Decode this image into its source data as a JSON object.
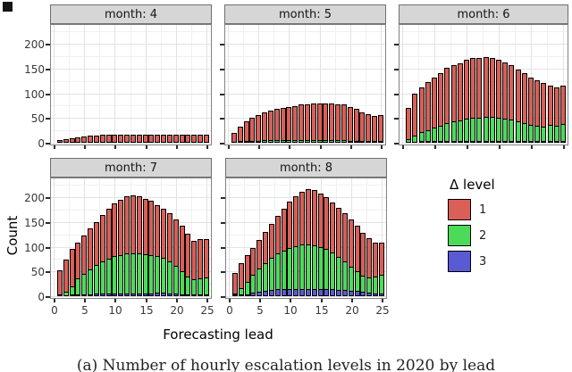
{
  "figure": {
    "y_axis_title": "Count",
    "x_axis_title": "Forecasting lead",
    "caption": "(a) Number of hourly escalation levels in 2020 by lead",
    "y_tick_labels": [
      "0",
      "50",
      "100",
      "150",
      "200"
    ],
    "x_tick_labels": [
      "0",
      "5",
      "10",
      "15",
      "20",
      "25"
    ]
  },
  "legend": {
    "title": "Δ level",
    "items": [
      {
        "label": "1",
        "color": "#d95f57"
      },
      {
        "label": "2",
        "color": "#4cdb58"
      },
      {
        "label": "3",
        "color": "#5a5ad4"
      }
    ]
  },
  "chart_data": {
    "type": "bar",
    "stacked": true,
    "stack_order_bottom_to_top": [
      "3",
      "2",
      "1"
    ],
    "title": "",
    "xlabel": "Forecasting lead",
    "ylabel": "Count",
    "legend_title": "Δ level",
    "legend_position": "right",
    "grid": true,
    "xlim": [
      0,
      25
    ],
    "ylim": [
      0,
      240
    ],
    "x_major_ticks": [
      0,
      5,
      10,
      15,
      20,
      25
    ],
    "y_major_ticks": [
      0,
      50,
      100,
      150,
      200
    ],
    "x": [
      1,
      2,
      3,
      4,
      5,
      6,
      7,
      8,
      9,
      10,
      11,
      12,
      13,
      14,
      15,
      16,
      17,
      18,
      19,
      20,
      21,
      22,
      23,
      24,
      25
    ],
    "colors": {
      "1": "#d95f57",
      "2": "#4cdb58",
      "3": "#5a5ad4"
    },
    "facets": [
      {
        "strip": "month: 4",
        "series": {
          "1": [
            5,
            7,
            9,
            10,
            12,
            15,
            15,
            17,
            17,
            17,
            17,
            17,
            17,
            17,
            17,
            17,
            17,
            17,
            17,
            17,
            17,
            17,
            17,
            17,
            17
          ],
          "2": [
            0,
            0,
            0,
            0,
            0,
            0,
            0,
            0,
            0,
            0,
            0,
            0,
            0,
            0,
            0,
            0,
            0,
            0,
            0,
            0,
            0,
            0,
            0,
            0,
            0
          ],
          "3": [
            0,
            0,
            0,
            0,
            0,
            0,
            0,
            0,
            0,
            0,
            0,
            0,
            0,
            0,
            0,
            0,
            0,
            0,
            0,
            0,
            0,
            0,
            0,
            0,
            0
          ]
        }
      },
      {
        "strip": "month: 5",
        "series": {
          "1": [
            20,
            31,
            41,
            48,
            54,
            58,
            62,
            65,
            67,
            69,
            71,
            73,
            74,
            75,
            75,
            75,
            75,
            74,
            73,
            71,
            66,
            60,
            55,
            52,
            54
          ],
          "2": [
            0,
            2,
            3,
            4,
            4,
            5,
            5,
            5,
            5,
            5,
            5,
            5,
            5,
            5,
            5,
            5,
            5,
            5,
            5,
            4,
            4,
            4,
            3,
            3,
            4
          ],
          "3": [
            0,
            0,
            0,
            0,
            0,
            0,
            0,
            0,
            0,
            0,
            0,
            0,
            0,
            0,
            0,
            0,
            0,
            0,
            0,
            0,
            0,
            0,
            0,
            0,
            0
          ]
        }
      },
      {
        "strip": "month: 6",
        "series": {
          "1": [
            64,
            86,
            92,
            99,
            103,
            109,
            113,
            115,
            118,
            121,
            122,
            123,
            122,
            121,
            119,
            116,
            111,
            107,
            103,
            98,
            93,
            90,
            81,
            79,
            79
          ],
          "2": [
            8,
            14,
            19,
            24,
            29,
            33,
            37,
            41,
            44,
            46,
            48,
            49,
            50,
            50,
            49,
            47,
            45,
            42,
            38,
            35,
            32,
            30,
            34,
            32,
            36
          ],
          "3": [
            0,
            0,
            1,
            1,
            2,
            2,
            2,
            3,
            3,
            3,
            3,
            3,
            3,
            3,
            3,
            3,
            3,
            2,
            2,
            2,
            2,
            1,
            1,
            1,
            1
          ]
        }
      },
      {
        "strip": "month: 7",
        "series": {
          "1": [
            50,
            66,
            78,
            74,
            79,
            85,
            89,
            96,
            102,
            108,
            114,
            118,
            119,
            117,
            114,
            111,
            105,
            101,
            99,
            95,
            93,
            88,
            80,
            81,
            80
          ],
          "2": [
            2,
            9,
            18,
            35,
            44,
            52,
            60,
            66,
            72,
            77,
            80,
            82,
            83,
            82,
            81,
            79,
            76,
            72,
            66,
            58,
            48,
            38,
            33,
            35,
            36
          ],
          "3": [
            0,
            0,
            1,
            3,
            4,
            4,
            5,
            5,
            5,
            5,
            5,
            5,
            5,
            5,
            5,
            5,
            7,
            7,
            5,
            5,
            4,
            4,
            2,
            2,
            2
          ]
        }
      },
      {
        "strip": "month: 8",
        "series": {
          "1": [
            43,
            52,
            55,
            56,
            60,
            65,
            71,
            78,
            86,
            95,
            103,
            109,
            114,
            113,
            110,
            106,
            103,
            101,
            99,
            97,
            94,
            89,
            81,
            70,
            67
          ],
          "2": [
            3,
            14,
            27,
            37,
            48,
            57,
            66,
            74,
            80,
            85,
            89,
            91,
            92,
            90,
            86,
            82,
            75,
            68,
            60,
            51,
            42,
            35,
            32,
            36,
            40
          ],
          "3": [
            2,
            2,
            3,
            7,
            9,
            11,
            13,
            14,
            15,
            15,
            15,
            15,
            15,
            15,
            15,
            14,
            14,
            13,
            12,
            11,
            10,
            9,
            8,
            6,
            6
          ]
        }
      }
    ]
  }
}
